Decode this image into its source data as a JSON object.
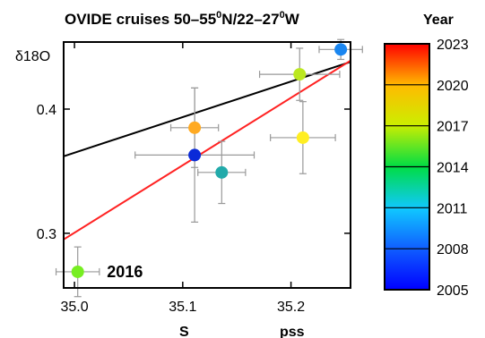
{
  "chart_data": {
    "type": "scatter",
    "title": "OVIDE cruises 50–55⁰N/22–27⁰W",
    "title_parts": {
      "main": "OVIDE cruises 50–55",
      "sup1": "0",
      "mid": "N/22–27",
      "sup2": "0",
      "end": "W"
    },
    "xlabel": "S",
    "xunit": "pss",
    "ylabel": "δ18O",
    "xlim": [
      34.99,
      35.255
    ],
    "ylim": [
      0.256,
      0.454
    ],
    "xticks": [
      35.0,
      35.1,
      35.2
    ],
    "xtick_labels": [
      "35.0",
      "35.1",
      "35.2"
    ],
    "yticks": [
      0.3,
      0.4
    ],
    "ytick_labels": [
      "0.3",
      "0.4"
    ],
    "grid": false,
    "colorbar": {
      "title": "Year",
      "min": 2005,
      "max": 2023,
      "ticks": [
        2005,
        2008,
        2011,
        2014,
        2017,
        2020,
        2023
      ],
      "tick_labels": [
        "2005",
        "2008",
        "2011",
        "2014",
        "2017",
        "2020",
        "2023"
      ]
    },
    "points": [
      {
        "year": 2016,
        "x": 35.003,
        "y": 0.269,
        "xerr": 0.02,
        "yerr": 0.02,
        "color": "#77ee22"
      },
      {
        "year": 2008,
        "x": 35.111,
        "y": 0.363,
        "xerr": 0.055,
        "yerr": 0.054,
        "color": "#0a2ad8"
      },
      {
        "year": 2021,
        "x": 35.111,
        "y": 0.385,
        "xerr": 0.022,
        "yerr": 0.032,
        "color": "#ffaa22"
      },
      {
        "year": 2012,
        "x": 35.136,
        "y": 0.349,
        "xerr": 0.022,
        "yerr": 0.025,
        "color": "#22aaaa"
      },
      {
        "year": 2018,
        "x": 35.211,
        "y": 0.377,
        "xerr": 0.03,
        "yerr": 0.029,
        "color": "#ffee22"
      },
      {
        "year": 2017,
        "x": 35.208,
        "y": 0.428,
        "xerr": 0.037,
        "yerr": 0.021,
        "color": "#bbe820"
      },
      {
        "year": 2010,
        "x": 35.246,
        "y": 0.448,
        "xerr": 0.02,
        "yerr": 0.008,
        "color": "#1a86f0"
      }
    ],
    "fit_lines": [
      {
        "color": "#000000",
        "x": [
          34.99,
          35.255
        ],
        "y": [
          0.362,
          0.438
        ]
      },
      {
        "color": "#ff2222",
        "x": [
          34.99,
          35.255
        ],
        "y": [
          0.295,
          0.439
        ]
      }
    ],
    "annotations": [
      {
        "text": "2016",
        "x": 35.03,
        "y": 0.269
      }
    ]
  }
}
